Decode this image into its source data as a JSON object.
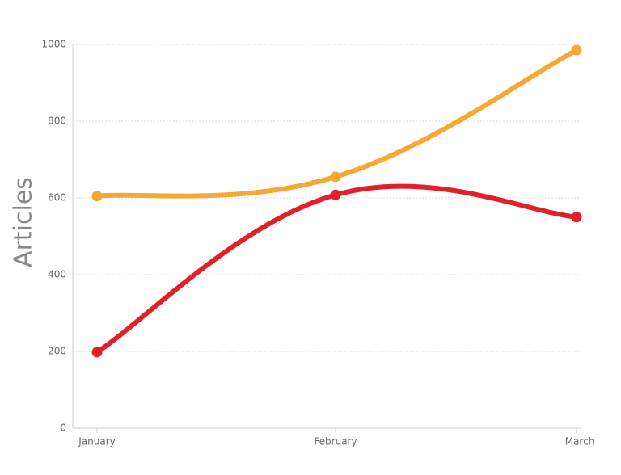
{
  "chart_data": {
    "type": "line",
    "y_label": "Articles",
    "categories": [
      "January",
      "February",
      "March"
    ],
    "series": [
      {
        "color": "#f5a833",
        "values": [
          605,
          655,
          985
        ]
      },
      {
        "color": "#e2202b",
        "values": [
          198,
          608,
          550
        ]
      }
    ],
    "ylim": [
      0,
      1000
    ],
    "yticks": [
      0,
      200,
      400,
      600,
      800,
      1000
    ],
    "grid": true,
    "smooth": true
  }
}
